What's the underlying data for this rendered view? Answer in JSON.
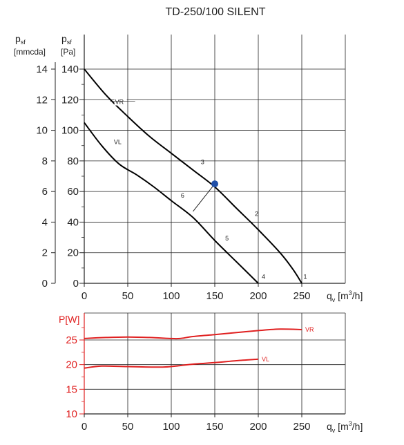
{
  "chart_data": [
    {
      "type": "line",
      "title": "TD-250/100 SILENT",
      "y_axes": [
        {
          "label_main": "p",
          "label_sub": "sf",
          "unit": "[mmcda]",
          "ticks": [
            0,
            2,
            4,
            6,
            8,
            10,
            12,
            14
          ]
        },
        {
          "label_main": "p",
          "label_sub": "sf",
          "unit": "[Pa]",
          "ticks": [
            0,
            20,
            40,
            60,
            80,
            100,
            120,
            140
          ]
        }
      ],
      "x_axis": {
        "label_main": "q",
        "label_sub": "v",
        "unit_pre": " [m",
        "unit_sup": "3",
        "unit_post": "/h]",
        "ticks": [
          0,
          50,
          100,
          150,
          200,
          250
        ]
      },
      "xlim": [
        0,
        300
      ],
      "ylim": [
        0,
        140
      ],
      "grid": true,
      "series": [
        {
          "name": "VR",
          "x": [
            0,
            25,
            50,
            75,
            100,
            125,
            150,
            175,
            200,
            225,
            240,
            250
          ],
          "y": [
            140,
            123,
            109,
            96,
            85,
            74,
            63,
            49,
            35,
            20,
            9,
            0
          ]
        },
        {
          "name": "VL",
          "x": [
            0,
            20,
            40,
            60,
            80,
            100,
            125,
            150,
            175,
            200
          ],
          "y": [
            105,
            90,
            78,
            71,
            63,
            54,
            43,
            28,
            14,
            0
          ]
        }
      ],
      "connector": {
        "from": [
          150,
          65
        ],
        "to": [
          125,
          47
        ]
      },
      "point_labels": [
        {
          "text": "1",
          "x": 252,
          "y": 3
        },
        {
          "text": "2",
          "x": 196,
          "y": 44
        },
        {
          "text": "3",
          "x": 134,
          "y": 78
        },
        {
          "text": "4",
          "x": 204,
          "y": 3
        },
        {
          "text": "5",
          "x": 162,
          "y": 28
        },
        {
          "text": "6",
          "x": 111,
          "y": 56
        }
      ],
      "operating_point": {
        "x": 150,
        "y": 65,
        "color": "#1f4fa8"
      },
      "line_color": "#000000"
    },
    {
      "type": "line",
      "y_axis": {
        "label": "P[W]",
        "ticks": [
          10,
          15,
          20,
          25
        ]
      },
      "x_axis": {
        "label_main": "q",
        "label_sub": "v",
        "unit_pre": " [m",
        "unit_sup": "3",
        "unit_post": "/h]",
        "ticks": [
          0,
          50,
          100,
          150,
          200,
          250
        ]
      },
      "xlim": [
        0,
        300
      ],
      "ylim": [
        10,
        28.5
      ],
      "grid": true,
      "series": [
        {
          "name": "VR",
          "x": [
            0,
            25,
            50,
            75,
            100,
            110,
            125,
            150,
            175,
            200,
            225,
            250
          ],
          "y": [
            25.3,
            25.5,
            25.6,
            25.5,
            25.3,
            25.3,
            25.7,
            26.1,
            26.5,
            26.9,
            27.2,
            27.1
          ]
        },
        {
          "name": "VL",
          "x": [
            0,
            20,
            50,
            90,
            110,
            125,
            150,
            175,
            200
          ],
          "y": [
            19.3,
            19.7,
            19.6,
            19.5,
            19.8,
            20.1,
            20.4,
            20.8,
            21.1
          ]
        }
      ],
      "line_color": "#e02020"
    }
  ]
}
